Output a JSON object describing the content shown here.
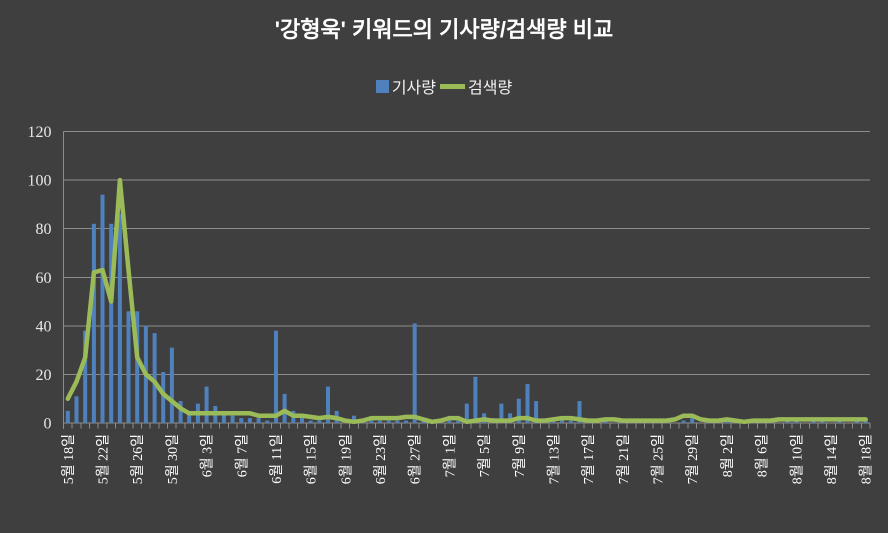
{
  "title": "'강형욱' 키워드의 기사량/검색량 비교",
  "legend": {
    "items": [
      {
        "label": "기사량",
        "type": "bar",
        "color": "#4F81BD"
      },
      {
        "label": "검색량",
        "type": "line",
        "color": "#9BBB59"
      }
    ]
  },
  "colors": {
    "background": "#3F3F3F",
    "grid": "#8C8C8C",
    "bar": "#4F81BD",
    "line": "#9BBB59",
    "title_text": "#FFFFFF",
    "axis_text": "#E8E8E8"
  },
  "chart_data": {
    "type": "bar",
    "title": "'강형욱' 키워드의 기사량/검색량 비교",
    "xlabel": "",
    "ylabel": "",
    "ylim": [
      0,
      120
    ],
    "yticks": [
      0,
      20,
      40,
      60,
      80,
      100,
      120
    ],
    "grid": true,
    "legend_position": "top",
    "x_label_every": 4,
    "x": [
      "5월 18일",
      "5월 19일",
      "5월 20일",
      "5월 21일",
      "5월 22일",
      "5월 23일",
      "5월 24일",
      "5월 25일",
      "5월 26일",
      "5월 27일",
      "5월 28일",
      "5월 29일",
      "5월 30일",
      "5월 31일",
      "6월 1일",
      "6월 2일",
      "6월 3일",
      "6월 4일",
      "6월 5일",
      "6월 6일",
      "6월 7일",
      "6월 8일",
      "6월 9일",
      "6월 10일",
      "6월 11일",
      "6월 12일",
      "6월 13일",
      "6월 14일",
      "6월 15일",
      "6월 16일",
      "6월 17일",
      "6월 18일",
      "6월 19일",
      "6월 20일",
      "6월 21일",
      "6월 22일",
      "6월 23일",
      "6월 24일",
      "6월 25일",
      "6월 26일",
      "6월 27일",
      "6월 28일",
      "6월 29일",
      "6월 30일",
      "7월 1일",
      "7월 2일",
      "7월 3일",
      "7월 4일",
      "7월 5일",
      "7월 6일",
      "7월 7일",
      "7월 8일",
      "7월 9일",
      "7월 10일",
      "7월 11일",
      "7월 12일",
      "7월 13일",
      "7월 14일",
      "7월 15일",
      "7월 16일",
      "7월 17일",
      "7월 18일",
      "7월 19일",
      "7월 20일",
      "7월 21일",
      "7월 22일",
      "7월 23일",
      "7월 24일",
      "7월 25일",
      "7월 26일",
      "7월 27일",
      "7월 28일",
      "7월 29일",
      "7월 30일",
      "7월 31일",
      "8월 1일",
      "8월 2일",
      "8월 3일",
      "8월 4일",
      "8월 5일",
      "8월 6일",
      "8월 7일",
      "8월 8일",
      "8월 9일",
      "8월 10일",
      "8월 11일",
      "8월 12일",
      "8월 13일",
      "8월 14일",
      "8월 15일",
      "8월 16일",
      "8월 17일",
      "8월 18일"
    ],
    "x_tick_labels": [
      "5월 18일",
      "5월 22일",
      "5월 26일",
      "5월 30일",
      "6월 3일",
      "6월 7일",
      "6월 11일",
      "6월 15일",
      "6월 19일",
      "6월 23일",
      "6월 27일",
      "7월 1일",
      "7월 5일",
      "7월 9일",
      "7월 13일",
      "7월 17일",
      "7월 21일",
      "7월 25일",
      "7월 29일",
      "8월 2일",
      "8월 6일",
      "8월 10일",
      "8월 14일",
      "8월 18일"
    ],
    "series": [
      {
        "name": "기사량",
        "kind": "bar",
        "color": "#4F81BD",
        "values": [
          5,
          11,
          38,
          82,
          94,
          82,
          86,
          46,
          46,
          40,
          37,
          21,
          31,
          9,
          5,
          8,
          15,
          7,
          4,
          3,
          2,
          2,
          2,
          1,
          38,
          12,
          5,
          2,
          1,
          1,
          15,
          5,
          1,
          3,
          1,
          1,
          1,
          1,
          1,
          1,
          41,
          2,
          1,
          1,
          1,
          1,
          8,
          19,
          4,
          2,
          8,
          4,
          10,
          16,
          9,
          1,
          1,
          2,
          1,
          9,
          1,
          0,
          1,
          0,
          1,
          0,
          1,
          1,
          0,
          1,
          0,
          1,
          2,
          0,
          1,
          0,
          1,
          0,
          0,
          1,
          0,
          1,
          0,
          1,
          1,
          0,
          1,
          1,
          0,
          1,
          0,
          1,
          1
        ]
      },
      {
        "name": "검색량",
        "kind": "line",
        "color": "#9BBB59",
        "values": [
          10,
          17,
          27,
          62,
          63,
          50,
          100,
          63,
          27,
          20,
          17,
          12,
          9,
          6,
          4,
          4,
          4,
          4,
          4,
          4,
          4,
          4,
          3,
          3,
          3,
          5,
          3,
          3,
          2.5,
          2,
          2.5,
          2,
          1,
          0.5,
          1,
          2,
          2,
          2,
          2,
          2.5,
          2.5,
          1.5,
          0.5,
          1,
          2,
          2,
          0.5,
          1,
          1.5,
          1,
          1,
          1,
          2,
          2,
          1,
          1,
          1.5,
          2,
          2,
          1.5,
          1,
          1,
          1.5,
          1.5,
          1,
          1,
          1,
          1,
          1,
          1,
          1.5,
          3,
          3,
          1.5,
          1,
          1,
          1.5,
          1,
          0.5,
          1,
          1,
          1,
          1.5,
          1.5,
          1.5,
          1.5,
          1.5,
          1.5,
          1.5,
          1.5,
          1.5,
          1.5,
          1.5
        ]
      }
    ]
  }
}
